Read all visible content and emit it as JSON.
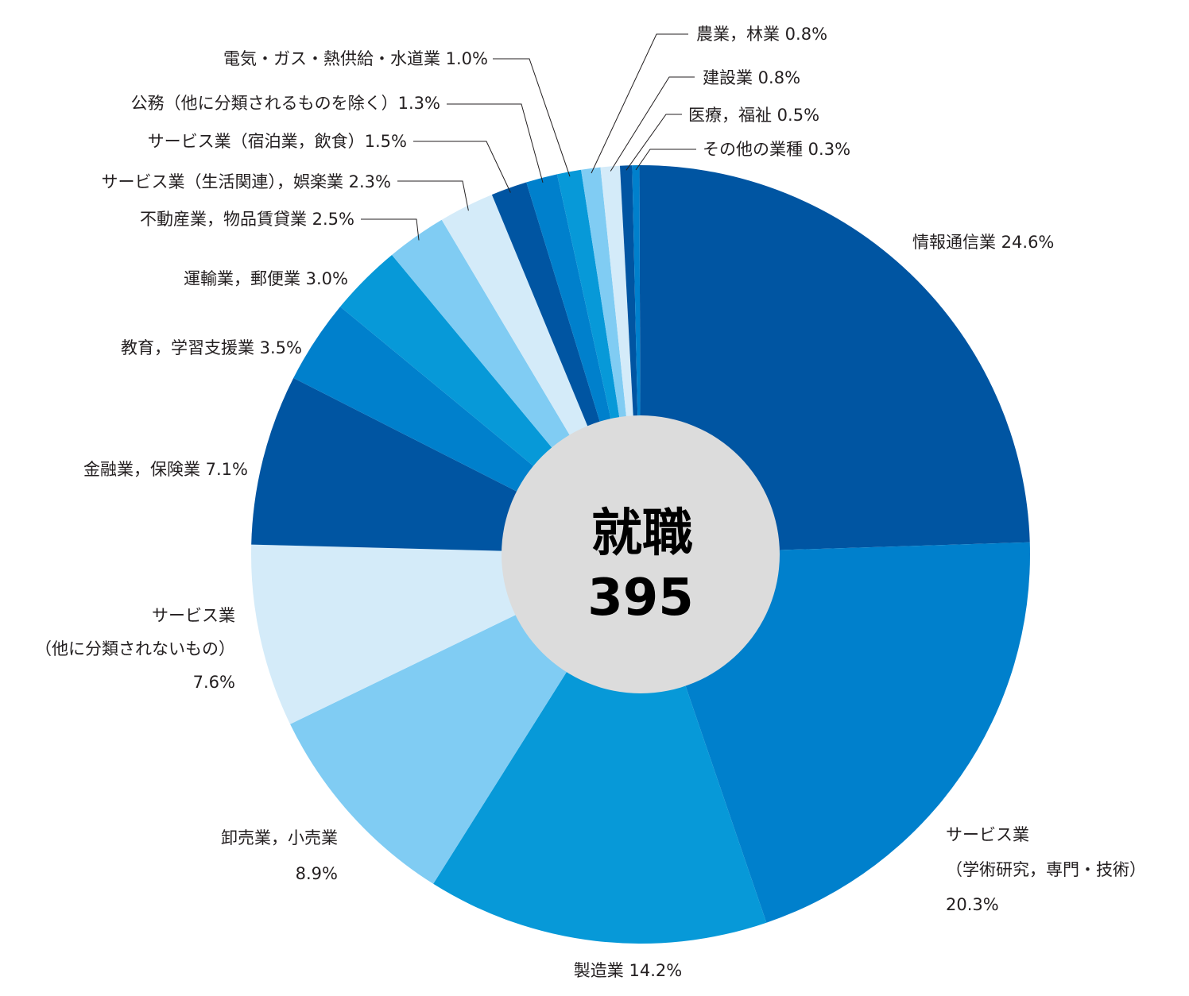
{
  "chart_data": {
    "type": "pie",
    "style": "donut",
    "center_label": "就職",
    "center_value": "395",
    "slices": [
      {
        "label": [
          "情報通信業 24.6%"
        ],
        "value": 24.6,
        "color": "#0055a2"
      },
      {
        "label": [
          "サービス業",
          "（学術研究，専門・技術）",
          "20.3%"
        ],
        "value": 20.3,
        "color": "#0080cc"
      },
      {
        "label": [
          "製造業 14.2%"
        ],
        "value": 14.2,
        "color": "#0799d8"
      },
      {
        "label": [
          "卸売業，小売業",
          "8.9%"
        ],
        "value": 8.9,
        "color": "#80ccf3"
      },
      {
        "label": [
          "サービス業",
          "（他に分類されないもの）",
          "7.6%"
        ],
        "value": 7.6,
        "color": "#d4ebf9"
      },
      {
        "label": [
          "金融業，保険業 7.1%"
        ],
        "value": 7.1,
        "color": "#0055a2"
      },
      {
        "label": [
          "教育，学習支援業 3.5%"
        ],
        "value": 3.5,
        "color": "#0080cc"
      },
      {
        "label": [
          "運輸業，郵便業 3.0%"
        ],
        "value": 3.0,
        "color": "#0799d8"
      },
      {
        "label": [
          "不動産業，物品賃貸業 2.5%"
        ],
        "value": 2.5,
        "color": "#80ccf3"
      },
      {
        "label": [
          "サービス業（生活関連），娯楽業 2.3%"
        ],
        "value": 2.3,
        "color": "#d4ebf9"
      },
      {
        "label": [
          "サービス業（宿泊業，飲食）1.5%"
        ],
        "value": 1.5,
        "color": "#0055a2"
      },
      {
        "label": [
          "公務（他に分類されるものを除く）1.3%"
        ],
        "value": 1.3,
        "color": "#0080cc"
      },
      {
        "label": [
          "電気・ガス・熱供給・水道業 1.0%"
        ],
        "value": 1.0,
        "color": "#0799d8"
      },
      {
        "label": [
          "農業，林業 0.8%"
        ],
        "value": 0.8,
        "color": "#80ccf3"
      },
      {
        "label": [
          "建設業 0.8%"
        ],
        "value": 0.8,
        "color": "#d4ebf9"
      },
      {
        "label": [
          "医療，福祉 0.5%"
        ],
        "value": 0.5,
        "color": "#0055a2"
      },
      {
        "label": [
          "その他の業種 0.3%"
        ],
        "value": 0.3,
        "color": "#0080cc"
      }
    ],
    "hole_color": "#dcdcdc"
  }
}
